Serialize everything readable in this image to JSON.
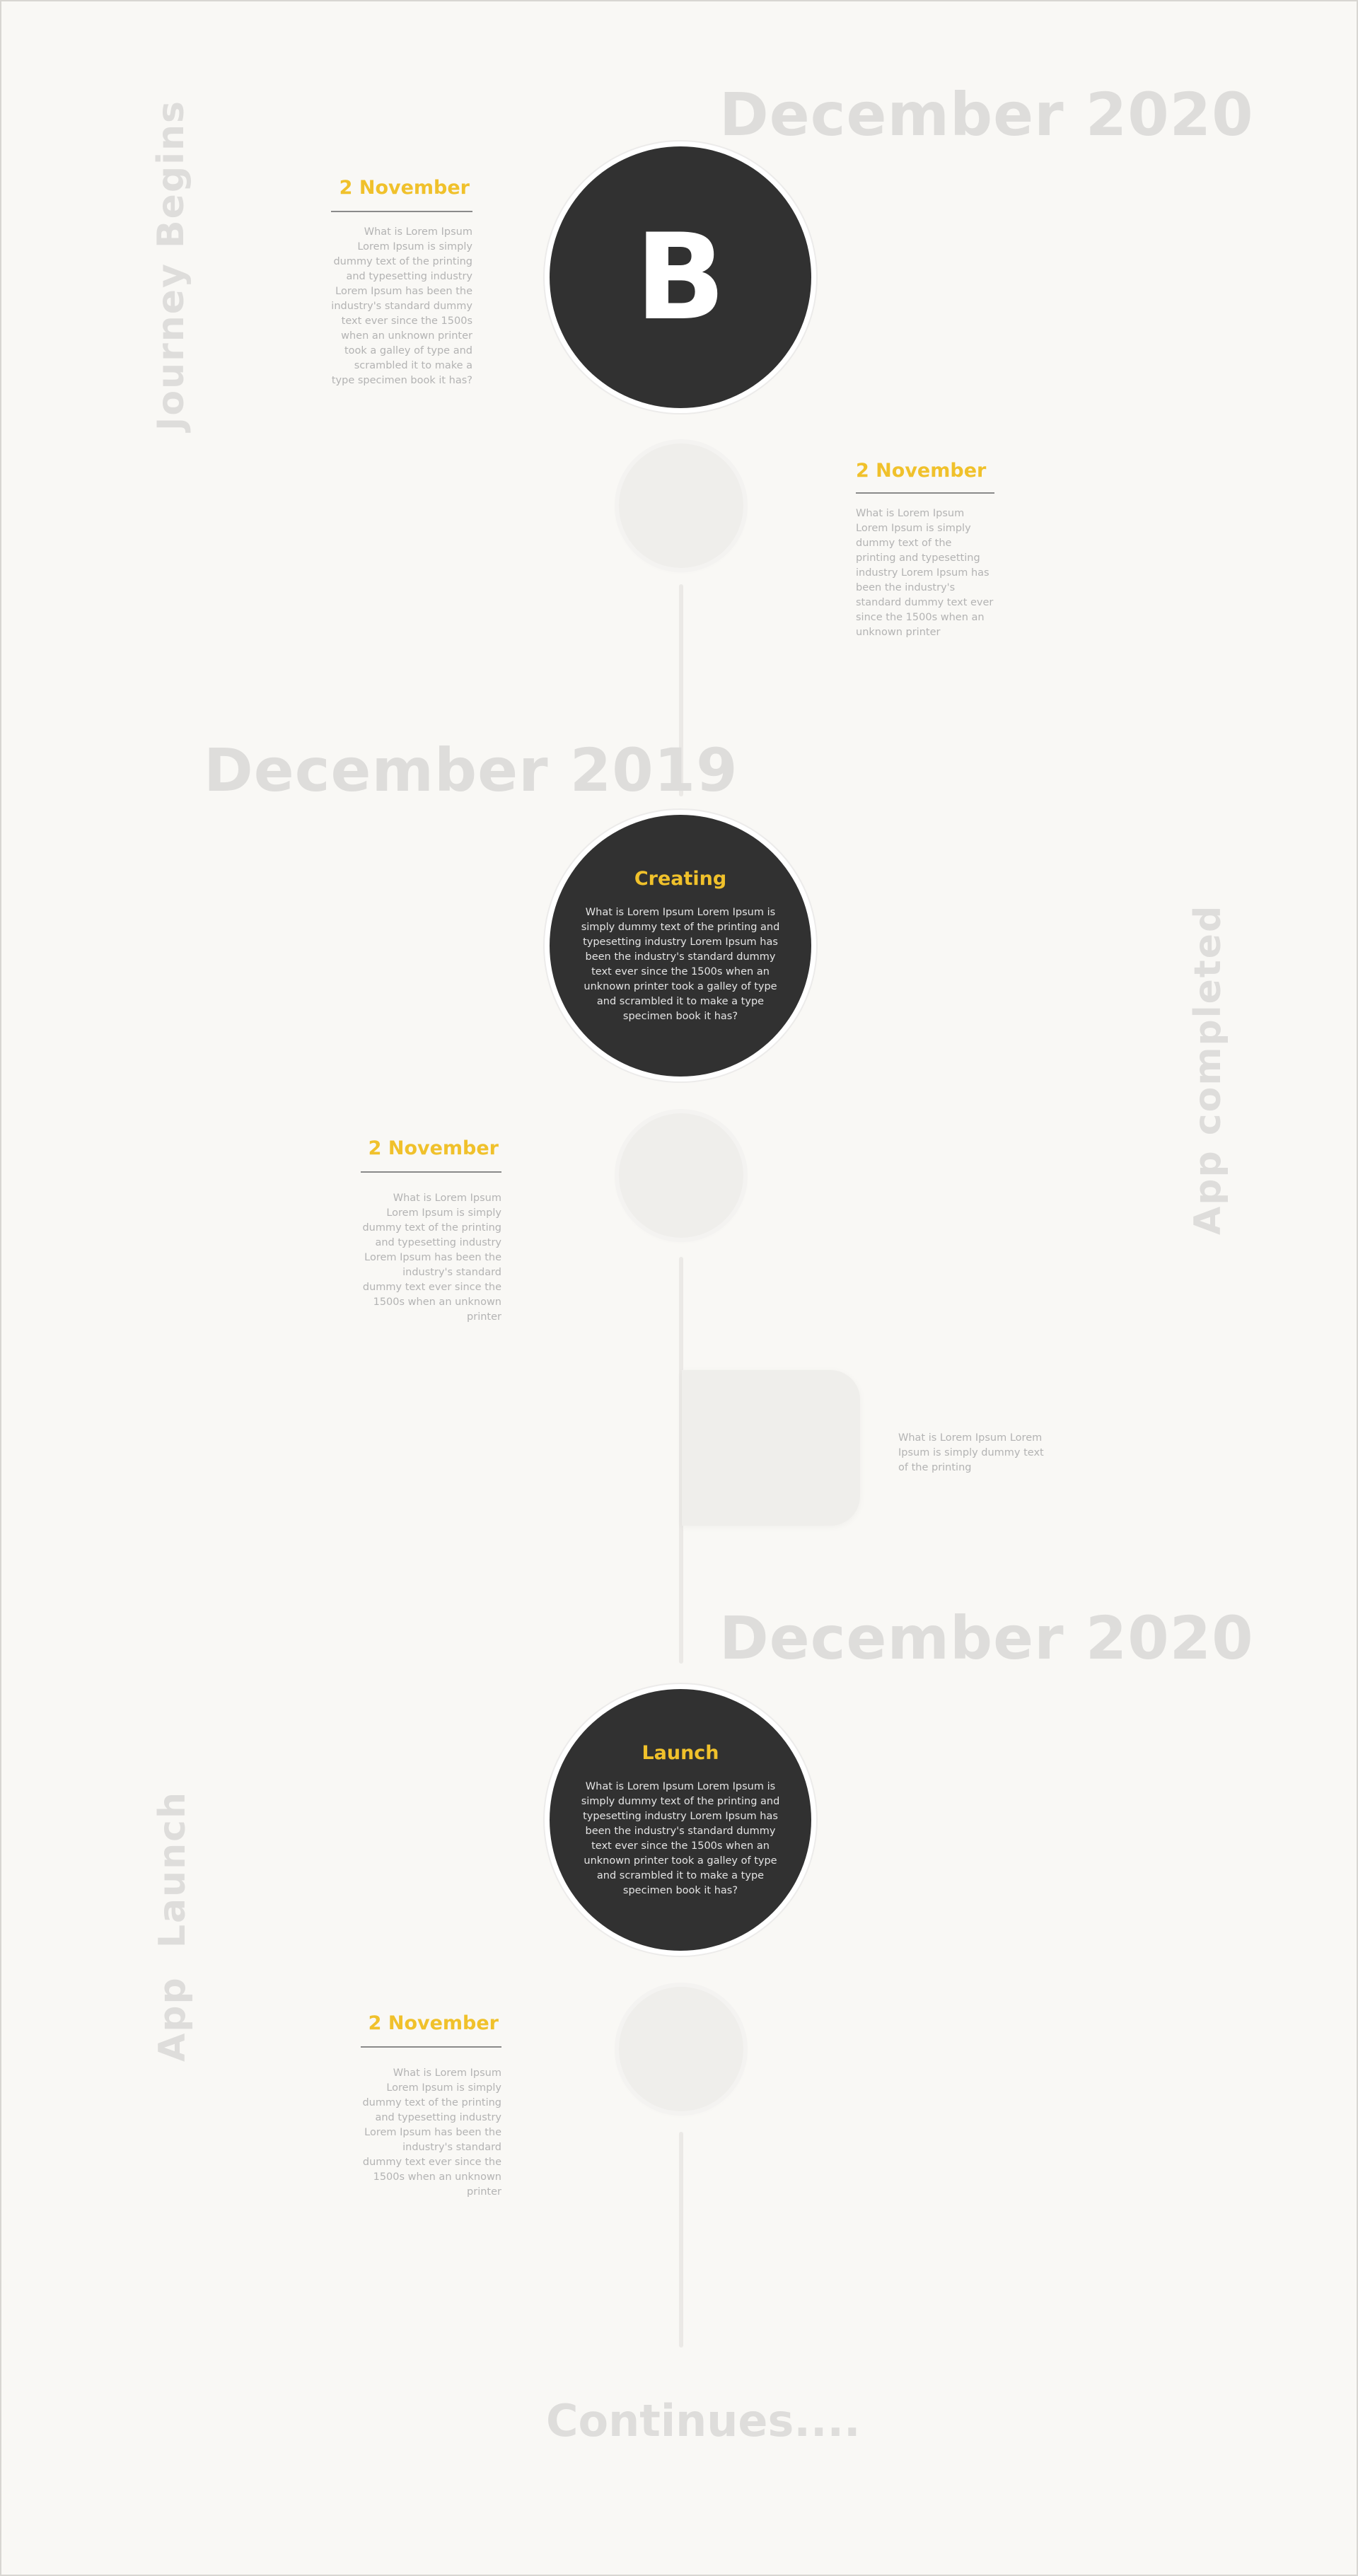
{
  "timeline": {
    "section1": {
      "year_label": "December 2020",
      "side_label": "Journey Begins",
      "logo_letter": "B",
      "left_entry": {
        "date": "2 November",
        "text": "What is Lorem Ipsum Lorem Ipsum is simply dummy text of the printing and typesetting industry Lorem Ipsum has been the industry's standard dummy text ever since the 1500s when an unknown printer took a galley of type and scrambled it to make a type specimen book it has?"
      },
      "right_entry": {
        "date": "2 November",
        "text": "What is Lorem Ipsum Lorem Ipsum is simply dummy text of the printing and typesetting industry Lorem Ipsum has been the industry's standard dummy text ever since the 1500s when an unknown printer"
      }
    },
    "section2": {
      "year_label": "December 2019",
      "side_label": "App completed",
      "circle_title": "Creating",
      "circle_text": "What is Lorem Ipsum Lorem Ipsum is simply dummy text of the printing and typesetting industry Lorem Ipsum has been the industry's standard dummy text ever since the 1500s when an unknown printer took a galley of type and scrambled it to make a type specimen book it has?",
      "left_entry": {
        "date": "2 November",
        "text": "What is Lorem Ipsum Lorem Ipsum is simply dummy text of the printing and typesetting industry Lorem Ipsum has been the industry's standard dummy text ever since the 1500s when an unknown printer"
      },
      "box_text": "What is Lorem Ipsum Lorem Ipsum is simply dummy text of the printing"
    },
    "section3": {
      "year_label": "December 2020",
      "side_label": "App  Launch",
      "circle_title": "Launch",
      "circle_text": "What is Lorem Ipsum Lorem Ipsum is simply dummy text of the printing and typesetting industry Lorem Ipsum has been the industry's standard dummy text ever since the 1500s when an unknown printer took a galley of type and scrambled it to make a type specimen book it has?",
      "left_entry": {
        "date": "2 November",
        "text": "What is Lorem Ipsum Lorem Ipsum is simply dummy text of the printing and typesetting industry Lorem Ipsum has been the industry's standard dummy text ever since the 1500s when an unknown printer"
      }
    },
    "footer": "Continues...."
  },
  "colors": {
    "background": "#f9f8f5",
    "dark_circle": "#313131",
    "accent": "#f0c12b",
    "ghost_text": "#dedddb",
    "body_text": "#b3b3b3"
  }
}
